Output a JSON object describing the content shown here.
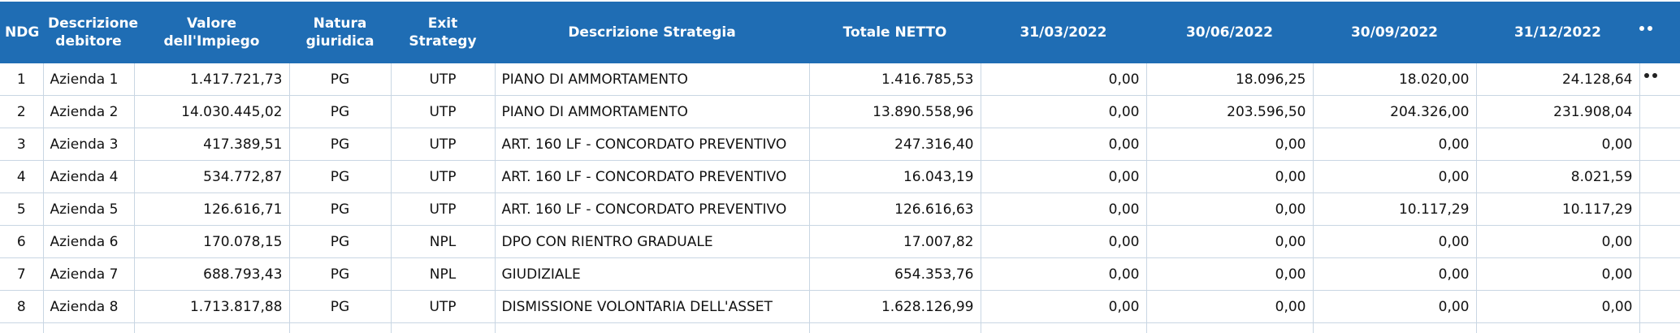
{
  "table": {
    "columns": [
      "NDG",
      "Descrizione debitore",
      "Valore dell'Impiego",
      "Natura giuridica",
      "Exit Strategy",
      "Descrizione Strategia",
      "Totale NETTO",
      "31/03/2022",
      "30/06/2022",
      "30/09/2022",
      "31/12/2022"
    ],
    "rows": [
      [
        "1",
        "Azienda 1",
        "1.417.721,73",
        "PG",
        "UTP",
        "PIANO DI AMMORTAMENTO",
        "1.416.785,53",
        "0,00",
        "18.096,25",
        "18.020,00",
        "24.128,64"
      ],
      [
        "2",
        "Azienda 2",
        "14.030.445,02",
        "PG",
        "UTP",
        "PIANO DI AMMORTAMENTO",
        "13.890.558,96",
        "0,00",
        "203.596,50",
        "204.326,00",
        "231.908,04"
      ],
      [
        "3",
        "Azienda 3",
        "417.389,51",
        "PG",
        "UTP",
        "ART. 160 LF - CONCORDATO PREVENTIVO",
        "247.316,40",
        "0,00",
        "0,00",
        "0,00",
        "0,00"
      ],
      [
        "4",
        "Azienda 4",
        "534.772,87",
        "PG",
        "UTP",
        "ART. 160 LF - CONCORDATO PREVENTIVO",
        "16.043,19",
        "0,00",
        "0,00",
        "0,00",
        "8.021,59"
      ],
      [
        "5",
        "Azienda 5",
        "126.616,71",
        "PG",
        "UTP",
        "ART. 160 LF - CONCORDATO PREVENTIVO",
        "126.616,63",
        "0,00",
        "0,00",
        "10.117,29",
        "10.117,29"
      ],
      [
        "6",
        "Azienda 6",
        "170.078,15",
        "PG",
        "NPL",
        "DPO CON RIENTRO GRADUALE",
        "17.007,82",
        "0,00",
        "0,00",
        "0,00",
        "0,00"
      ],
      [
        "7",
        "Azienda 7",
        "688.793,43",
        "PG",
        "NPL",
        "GIUDIZIALE",
        "654.353,76",
        "0,00",
        "0,00",
        "0,00",
        "0,00"
      ],
      [
        "8",
        "Azienda 8",
        "1.713.817,88",
        "PG",
        "UTP",
        "DISMISSIONE VOLONTARIA DELL'ASSET",
        "1.628.126,99",
        "0,00",
        "0,00",
        "0,00",
        "0,00"
      ]
    ]
  }
}
